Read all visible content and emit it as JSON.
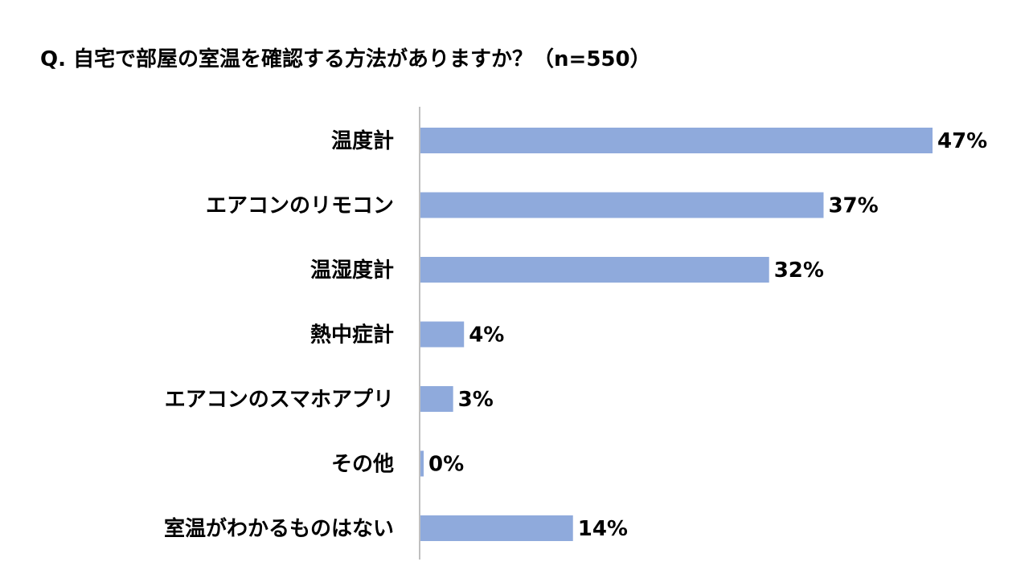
{
  "chart_data": {
    "type": "bar",
    "orientation": "horizontal",
    "title": "Q. 自宅で部屋の室温を確認する方法がありますか？（n=550）",
    "categories": [
      "温度計",
      "エアコンのリモコン",
      "温湿度計",
      "熱中症計",
      "エアコンのスマホアプリ",
      "その他",
      "室温がわかるものはない"
    ],
    "values": [
      47,
      37,
      32,
      4,
      3,
      0,
      14
    ],
    "value_labels": [
      "47%",
      "37%",
      "32%",
      "4%",
      "3%",
      "0%",
      "14%"
    ],
    "unit": "%",
    "xlim": [
      0,
      50
    ],
    "grid": false,
    "legend": "none",
    "bar_color": "#8faadc"
  }
}
